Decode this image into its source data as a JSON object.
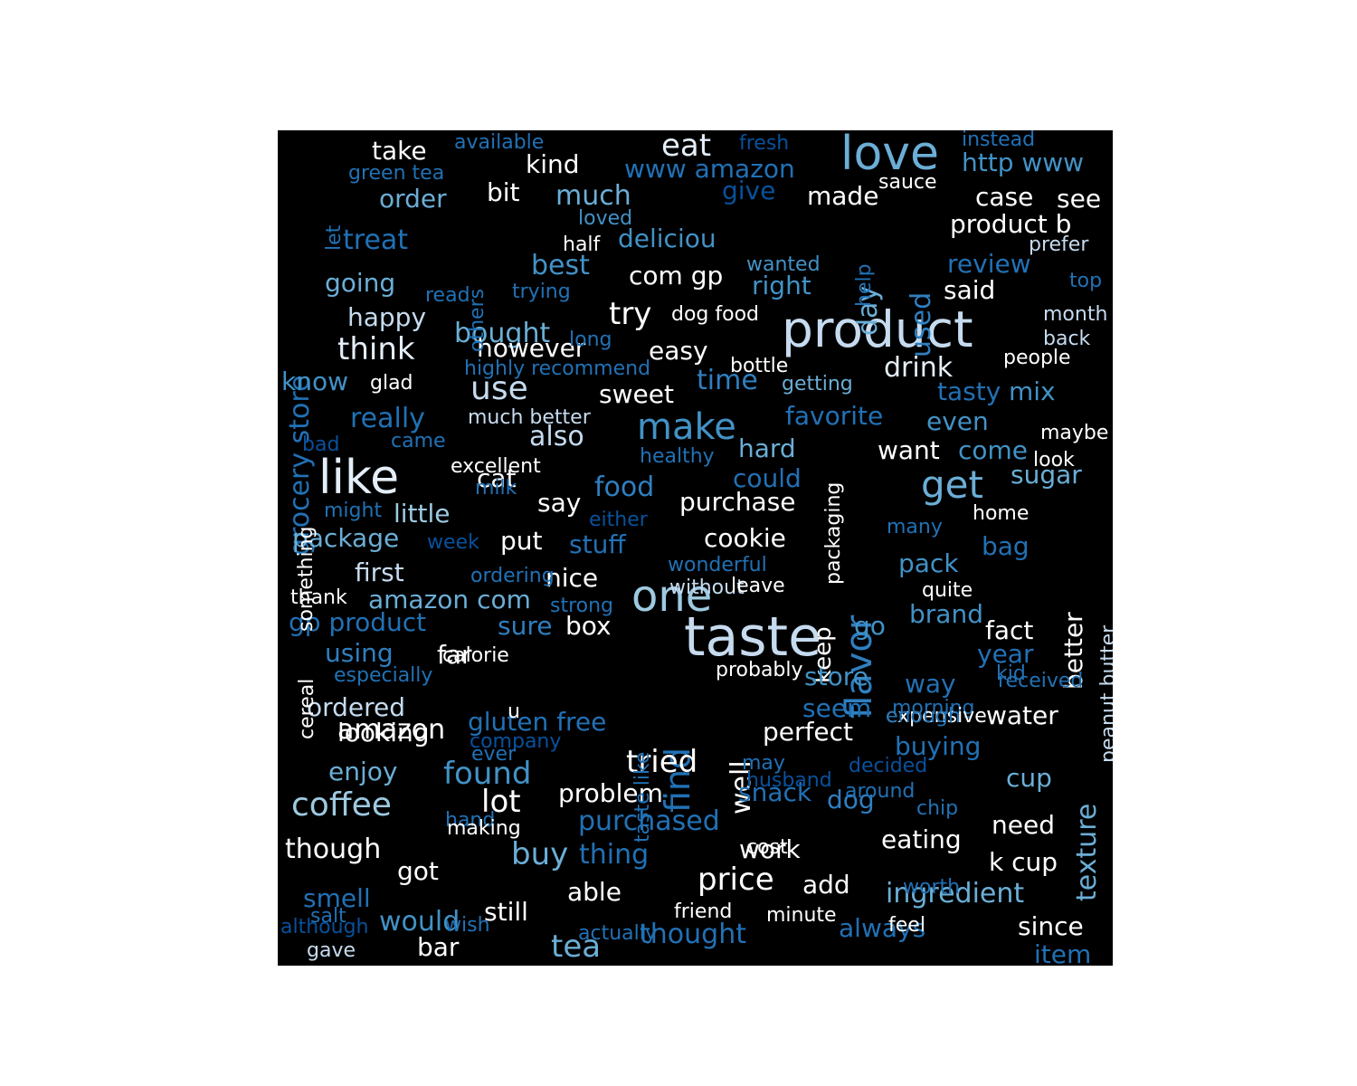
{
  "wordcloud": {
    "background": "#000000",
    "palette": [
      "#ffffff",
      "#c6dbef",
      "#9ecae1",
      "#6baed6",
      "#4292c6",
      "#2171b5",
      "#08519c"
    ],
    "words": [
      {
        "text": "taste",
        "color": "#c6dbef"
      },
      {
        "text": "product",
        "color": "#c6dbef"
      },
      {
        "text": "like",
        "color": "#e4eef8"
      },
      {
        "text": "love",
        "color": "#6baed6"
      },
      {
        "text": "flavor",
        "color": "#2f7fc0"
      },
      {
        "text": "one",
        "color": "#9ecae1"
      },
      {
        "text": "get",
        "color": "#6baed6"
      },
      {
        "text": "make",
        "color": "#4292c6"
      },
      {
        "text": "coffee",
        "color": "#9ecae1"
      },
      {
        "text": "use",
        "color": "#c6dbef"
      },
      {
        "text": "find",
        "color": "#2171b5"
      },
      {
        "text": "tried",
        "color": "#ffffff"
      },
      {
        "text": "think",
        "color": "#e4eef8"
      },
      {
        "text": "price",
        "color": "#ffffff"
      },
      {
        "text": "found",
        "color": "#4292c6"
      },
      {
        "text": "buy",
        "color": "#6baed6"
      },
      {
        "text": "tea",
        "color": "#6baed6"
      },
      {
        "text": "eat",
        "color": "#e4eef8"
      },
      {
        "text": "lot",
        "color": "#ffffff"
      },
      {
        "text": "try",
        "color": "#ffffff"
      },
      {
        "text": "amazon",
        "color": "#ffffff"
      },
      {
        "text": "texture",
        "color": "#6baed6"
      },
      {
        "text": "really",
        "color": "#2171b5"
      },
      {
        "text": "also",
        "color": "#c6dbef"
      },
      {
        "text": "bought",
        "color": "#6baed6"
      },
      {
        "text": "best",
        "color": "#4292c6"
      },
      {
        "text": "much",
        "color": "#6baed6"
      },
      {
        "text": "treat",
        "color": "#2171b5"
      },
      {
        "text": "used",
        "color": "#2f7fc0"
      },
      {
        "text": "day",
        "color": "#6baed6"
      },
      {
        "text": "time",
        "color": "#2f7fc0"
      },
      {
        "text": "food",
        "color": "#2f7fc0"
      },
      {
        "text": "grocery store",
        "color": "#2171b5"
      },
      {
        "text": "well",
        "color": "#ffffff"
      },
      {
        "text": "thought",
        "color": "#2171b5"
      },
      {
        "text": "would",
        "color": "#4292c6"
      },
      {
        "text": "though",
        "color": "#ffffff"
      },
      {
        "text": "ingredient",
        "color": "#6baed6"
      },
      {
        "text": "purchased",
        "color": "#2171b5"
      },
      {
        "text": "thing",
        "color": "#2171b5"
      },
      {
        "text": "drink",
        "color": "#e4eef8"
      },
      {
        "text": "sweet",
        "color": "#ffffff"
      },
      {
        "text": "cookie",
        "color": "#ffffff"
      },
      {
        "text": "problem",
        "color": "#ffffff"
      },
      {
        "text": "perfect",
        "color": "#ffffff"
      },
      {
        "text": "eating",
        "color": "#ffffff"
      },
      {
        "text": "water",
        "color": "#ffffff"
      },
      {
        "text": "dog",
        "color": "#2f7fc0"
      },
      {
        "text": "snack",
        "color": "#2171b5"
      },
      {
        "text": "cup",
        "color": "#6baed6"
      },
      {
        "text": "need",
        "color": "#ffffff"
      },
      {
        "text": "k cup",
        "color": "#ffffff"
      },
      {
        "text": "add",
        "color": "#ffffff"
      },
      {
        "text": "work",
        "color": "#ffffff"
      },
      {
        "text": "still",
        "color": "#ffffff"
      },
      {
        "text": "able",
        "color": "#ffffff"
      },
      {
        "text": "got",
        "color": "#ffffff"
      },
      {
        "text": "smell",
        "color": "#2171b5"
      },
      {
        "text": "enjoy",
        "color": "#6baed6"
      },
      {
        "text": "ordered",
        "color": "#c6dbef"
      },
      {
        "text": "looking",
        "color": "#ffffff"
      },
      {
        "text": "gluten free",
        "color": "#2171b5"
      },
      {
        "text": "using",
        "color": "#2f7fc0"
      },
      {
        "text": "far",
        "color": "#ffffff"
      },
      {
        "text": "gp product",
        "color": "#2171b5"
      },
      {
        "text": "amazon com",
        "color": "#6baed6"
      },
      {
        "text": "first",
        "color": "#c6dbef"
      },
      {
        "text": "nice",
        "color": "#ffffff"
      },
      {
        "text": "sure",
        "color": "#2f7fc0"
      },
      {
        "text": "box",
        "color": "#ffffff"
      },
      {
        "text": "package",
        "color": "#6baed6"
      },
      {
        "text": "put",
        "color": "#ffffff"
      },
      {
        "text": "stuff",
        "color": "#2171b5"
      },
      {
        "text": "little",
        "color": "#9ecae1"
      },
      {
        "text": "say",
        "color": "#ffffff"
      },
      {
        "text": "cat",
        "color": "#ffffff"
      },
      {
        "text": "purchase",
        "color": "#ffffff"
      },
      {
        "text": "could",
        "color": "#2171b5"
      },
      {
        "text": "hard",
        "color": "#6baed6"
      },
      {
        "text": "want",
        "color": "#ffffff"
      },
      {
        "text": "come",
        "color": "#4292c6"
      },
      {
        "text": "sugar",
        "color": "#6baed6"
      },
      {
        "text": "favorite",
        "color": "#2171b5"
      },
      {
        "text": "even",
        "color": "#4292c6"
      },
      {
        "text": "tasty",
        "color": "#2171b5"
      },
      {
        "text": "mix",
        "color": "#4292c6"
      },
      {
        "text": "know",
        "color": "#4292c6"
      },
      {
        "text": "happy",
        "color": "#c6dbef"
      },
      {
        "text": "going",
        "color": "#6baed6"
      },
      {
        "text": "order",
        "color": "#6baed6"
      },
      {
        "text": "take",
        "color": "#ffffff"
      },
      {
        "text": "kind",
        "color": "#ffffff"
      },
      {
        "text": "bit",
        "color": "#ffffff"
      },
      {
        "text": "www amazon",
        "color": "#2171b5"
      },
      {
        "text": "give",
        "color": "#08519c"
      },
      {
        "text": "made",
        "color": "#ffffff"
      },
      {
        "text": "http www",
        "color": "#4292c6"
      },
      {
        "text": "case",
        "color": "#ffffff"
      },
      {
        "text": "see",
        "color": "#ffffff"
      },
      {
        "text": "product b",
        "color": "#ffffff"
      },
      {
        "text": "deliciou",
        "color": "#4292c6"
      },
      {
        "text": "com gp",
        "color": "#ffffff"
      },
      {
        "text": "right",
        "color": "#4292c6"
      },
      {
        "text": "review",
        "color": "#2171b5"
      },
      {
        "text": "said",
        "color": "#ffffff"
      },
      {
        "text": "easy",
        "color": "#ffffff"
      },
      {
        "text": "however",
        "color": "#ffffff"
      },
      {
        "text": "keep",
        "color": "#ffffff"
      },
      {
        "text": "brand",
        "color": "#4292c6"
      },
      {
        "text": "fact",
        "color": "#ffffff"
      },
      {
        "text": "pack",
        "color": "#4292c6"
      },
      {
        "text": "bag",
        "color": "#2171b5"
      },
      {
        "text": "better",
        "color": "#ffffff"
      },
      {
        "text": "go",
        "color": "#4292c6"
      },
      {
        "text": "year",
        "color": "#2171b5"
      },
      {
        "text": "store",
        "color": "#4292c6"
      },
      {
        "text": "way",
        "color": "#2171b5"
      },
      {
        "text": "seem",
        "color": "#2171b5"
      },
      {
        "text": "buying",
        "color": "#2171b5"
      },
      {
        "text": "always",
        "color": "#2171b5"
      },
      {
        "text": "since",
        "color": "#ffffff"
      },
      {
        "text": "item",
        "color": "#2171b5"
      },
      {
        "text": "bar",
        "color": "#ffffff"
      },
      {
        "text": "taste like",
        "color": "#2171b5"
      },
      {
        "text": "available",
        "color": "#2171b5"
      },
      {
        "text": "fresh",
        "color": "#08519c"
      },
      {
        "text": "instead",
        "color": "#2171b5"
      },
      {
        "text": "green tea",
        "color": "#2171b5"
      },
      {
        "text": "let",
        "color": "#2171b5"
      },
      {
        "text": "sauce",
        "color": "#ffffff"
      },
      {
        "text": "loved",
        "color": "#4292c6"
      },
      {
        "text": "others",
        "color": "#2171b5"
      },
      {
        "text": "half",
        "color": "#ffffff"
      },
      {
        "text": "help",
        "color": "#2171b5"
      },
      {
        "text": "prefer",
        "color": "#c6dbef"
      },
      {
        "text": "wanted",
        "color": "#4292c6"
      },
      {
        "text": "read",
        "color": "#2171b5"
      },
      {
        "text": "trying",
        "color": "#2171b5"
      },
      {
        "text": "top",
        "color": "#2171b5"
      },
      {
        "text": "dog food",
        "color": "#ffffff"
      },
      {
        "text": "month",
        "color": "#c6dbef"
      },
      {
        "text": "long",
        "color": "#2171b5"
      },
      {
        "text": "back",
        "color": "#c6dbef"
      },
      {
        "text": "highly recommend",
        "color": "#2171b5"
      },
      {
        "text": "bottle",
        "color": "#ffffff"
      },
      {
        "text": "people",
        "color": "#ffffff"
      },
      {
        "text": "glad",
        "color": "#ffffff"
      },
      {
        "text": "getting",
        "color": "#6baed6"
      },
      {
        "text": "much better",
        "color": "#c6dbef"
      },
      {
        "text": "something",
        "color": "#ffffff"
      },
      {
        "text": "bad",
        "color": "#08519c"
      },
      {
        "text": "came",
        "color": "#2171b5"
      },
      {
        "text": "maybe",
        "color": "#ffffff"
      },
      {
        "text": "healthy",
        "color": "#2171b5"
      },
      {
        "text": "look",
        "color": "#ffffff"
      },
      {
        "text": "excellent",
        "color": "#ffffff"
      },
      {
        "text": "packaging",
        "color": "#ffffff"
      },
      {
        "text": "peanut butter",
        "color": "#c6dbef"
      },
      {
        "text": "milk",
        "color": "#2171b5"
      },
      {
        "text": "might",
        "color": "#2171b5"
      },
      {
        "text": "either",
        "color": "#08519c"
      },
      {
        "text": "home",
        "color": "#ffffff"
      },
      {
        "text": "many",
        "color": "#2171b5"
      },
      {
        "text": "week",
        "color": "#08519c"
      },
      {
        "text": "wonderful",
        "color": "#2171b5"
      },
      {
        "text": "ordering",
        "color": "#2171b5"
      },
      {
        "text": "without",
        "color": "#c6dbef"
      },
      {
        "text": "quite",
        "color": "#ffffff"
      },
      {
        "text": "thank",
        "color": "#ffffff"
      },
      {
        "text": "strong",
        "color": "#2171b5"
      },
      {
        "text": "leave",
        "color": "#ffffff"
      },
      {
        "text": "calorie",
        "color": "#ffffff"
      },
      {
        "text": "cereal",
        "color": "#ffffff"
      },
      {
        "text": "especially",
        "color": "#2171b5"
      },
      {
        "text": "probably",
        "color": "#ffffff"
      },
      {
        "text": "kid",
        "color": "#2171b5"
      },
      {
        "text": "u",
        "color": "#ffffff"
      },
      {
        "text": "morning",
        "color": "#2171b5"
      },
      {
        "text": "company",
        "color": "#08519c"
      },
      {
        "text": "expensive",
        "color": "#ffffff"
      },
      {
        "text": "ever",
        "color": "#2171b5"
      },
      {
        "text": "received",
        "color": "#2171b5"
      },
      {
        "text": "enough",
        "color": "#2171b5"
      },
      {
        "text": "hand",
        "color": "#2171b5"
      },
      {
        "text": "may",
        "color": "#2171b5"
      },
      {
        "text": "decided",
        "color": "#08519c"
      },
      {
        "text": "feel",
        "color": "#ffffff"
      },
      {
        "text": "cost",
        "color": "#ffffff"
      },
      {
        "text": "around",
        "color": "#2171b5"
      },
      {
        "text": "chip",
        "color": "#2171b5"
      },
      {
        "text": "worth",
        "color": "#2171b5"
      },
      {
        "text": "husband",
        "color": "#08519c"
      },
      {
        "text": "making",
        "color": "#ffffff"
      },
      {
        "text": "wish",
        "color": "#2171b5"
      },
      {
        "text": "friend",
        "color": "#ffffff"
      },
      {
        "text": "minute",
        "color": "#ffffff"
      },
      {
        "text": "salt",
        "color": "#2171b5"
      },
      {
        "text": "although",
        "color": "#08519c"
      },
      {
        "text": "actually",
        "color": "#2171b5"
      },
      {
        "text": "gave",
        "color": "#c6dbef"
      }
    ]
  }
}
